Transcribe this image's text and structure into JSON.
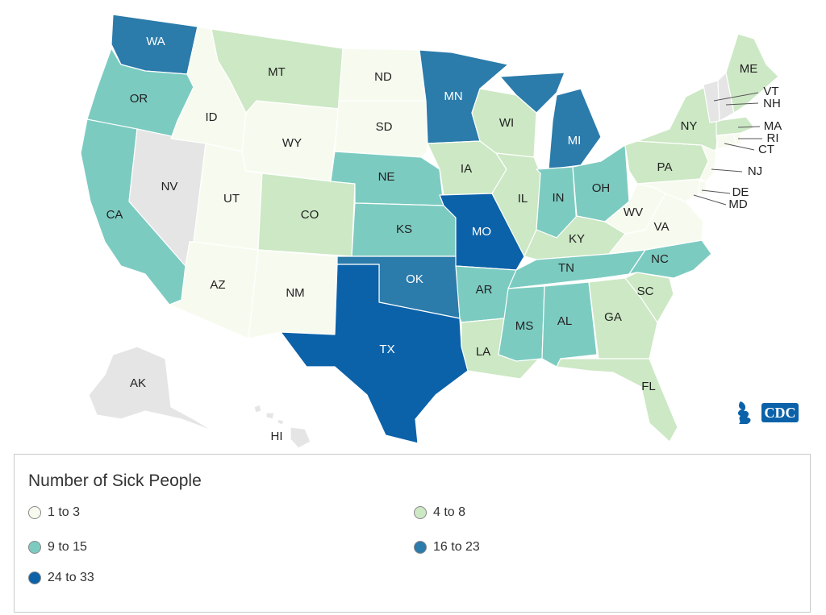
{
  "legend": {
    "title": "Number of Sick People",
    "bins": [
      {
        "label": "1 to 3",
        "color": "#f7fbef"
      },
      {
        "label": "4 to 8",
        "color": "#cce8c4"
      },
      {
        "label": "9 to 15",
        "color": "#7ccbc1"
      },
      {
        "label": "16 to 23",
        "color": "#2b7bab"
      },
      {
        "label": "24 to 33",
        "color": "#0b62a9"
      }
    ],
    "no_data_color": "#e5e5e5"
  },
  "logo": {
    "text": "CDC"
  },
  "states": {
    "WA": {
      "label": "WA",
      "bin": 3
    },
    "OR": {
      "label": "OR",
      "bin": 2
    },
    "CA": {
      "label": "CA",
      "bin": 2
    },
    "NV": {
      "label": "NV",
      "bin": -1
    },
    "ID": {
      "label": "ID",
      "bin": 0
    },
    "MT": {
      "label": "MT",
      "bin": 1
    },
    "WY": {
      "label": "WY",
      "bin": 0
    },
    "UT": {
      "label": "UT",
      "bin": 0
    },
    "AZ": {
      "label": "AZ",
      "bin": 0
    },
    "CO": {
      "label": "CO",
      "bin": 1
    },
    "NM": {
      "label": "NM",
      "bin": 0
    },
    "ND": {
      "label": "ND",
      "bin": 0
    },
    "SD": {
      "label": "SD",
      "bin": 0
    },
    "NE": {
      "label": "NE",
      "bin": 2
    },
    "KS": {
      "label": "KS",
      "bin": 2
    },
    "OK": {
      "label": "OK",
      "bin": 3
    },
    "TX": {
      "label": "TX",
      "bin": 4
    },
    "MN": {
      "label": "MN",
      "bin": 3
    },
    "IA": {
      "label": "IA",
      "bin": 1
    },
    "MO": {
      "label": "MO",
      "bin": 4
    },
    "AR": {
      "label": "AR",
      "bin": 2
    },
    "LA": {
      "label": "LA",
      "bin": 1
    },
    "WI": {
      "label": "WI",
      "bin": 1
    },
    "IL": {
      "label": "IL",
      "bin": 1
    },
    "MI": {
      "label": "MI",
      "bin": 3
    },
    "IN": {
      "label": "IN",
      "bin": 2
    },
    "OH": {
      "label": "OH",
      "bin": 2
    },
    "KY": {
      "label": "KY",
      "bin": 1
    },
    "TN": {
      "label": "TN",
      "bin": 2
    },
    "MS": {
      "label": "MS",
      "bin": 2
    },
    "AL": {
      "label": "AL",
      "bin": 2
    },
    "GA": {
      "label": "GA",
      "bin": 1
    },
    "FL": {
      "label": "FL",
      "bin": 1
    },
    "SC": {
      "label": "SC",
      "bin": 1
    },
    "NC": {
      "label": "NC",
      "bin": 2
    },
    "VA": {
      "label": "VA",
      "bin": 0
    },
    "WV": {
      "label": "WV",
      "bin": 0
    },
    "PA": {
      "label": "PA",
      "bin": 1
    },
    "NY": {
      "label": "NY",
      "bin": 1
    },
    "ME": {
      "label": "ME",
      "bin": 1
    },
    "VT": {
      "label": "VT",
      "bin": -1
    },
    "NH": {
      "label": "NH",
      "bin": -1
    },
    "MA": {
      "label": "MA",
      "bin": 1
    },
    "RI": {
      "label": "RI",
      "bin": 0
    },
    "CT": {
      "label": "CT",
      "bin": 0
    },
    "NJ": {
      "label": "NJ",
      "bin": 0
    },
    "DE": {
      "label": "DE",
      "bin": 0
    },
    "MD": {
      "label": "MD",
      "bin": 0
    },
    "AK": {
      "label": "AK",
      "bin": -1
    },
    "HI": {
      "label": "HI",
      "bin": -1
    }
  }
}
